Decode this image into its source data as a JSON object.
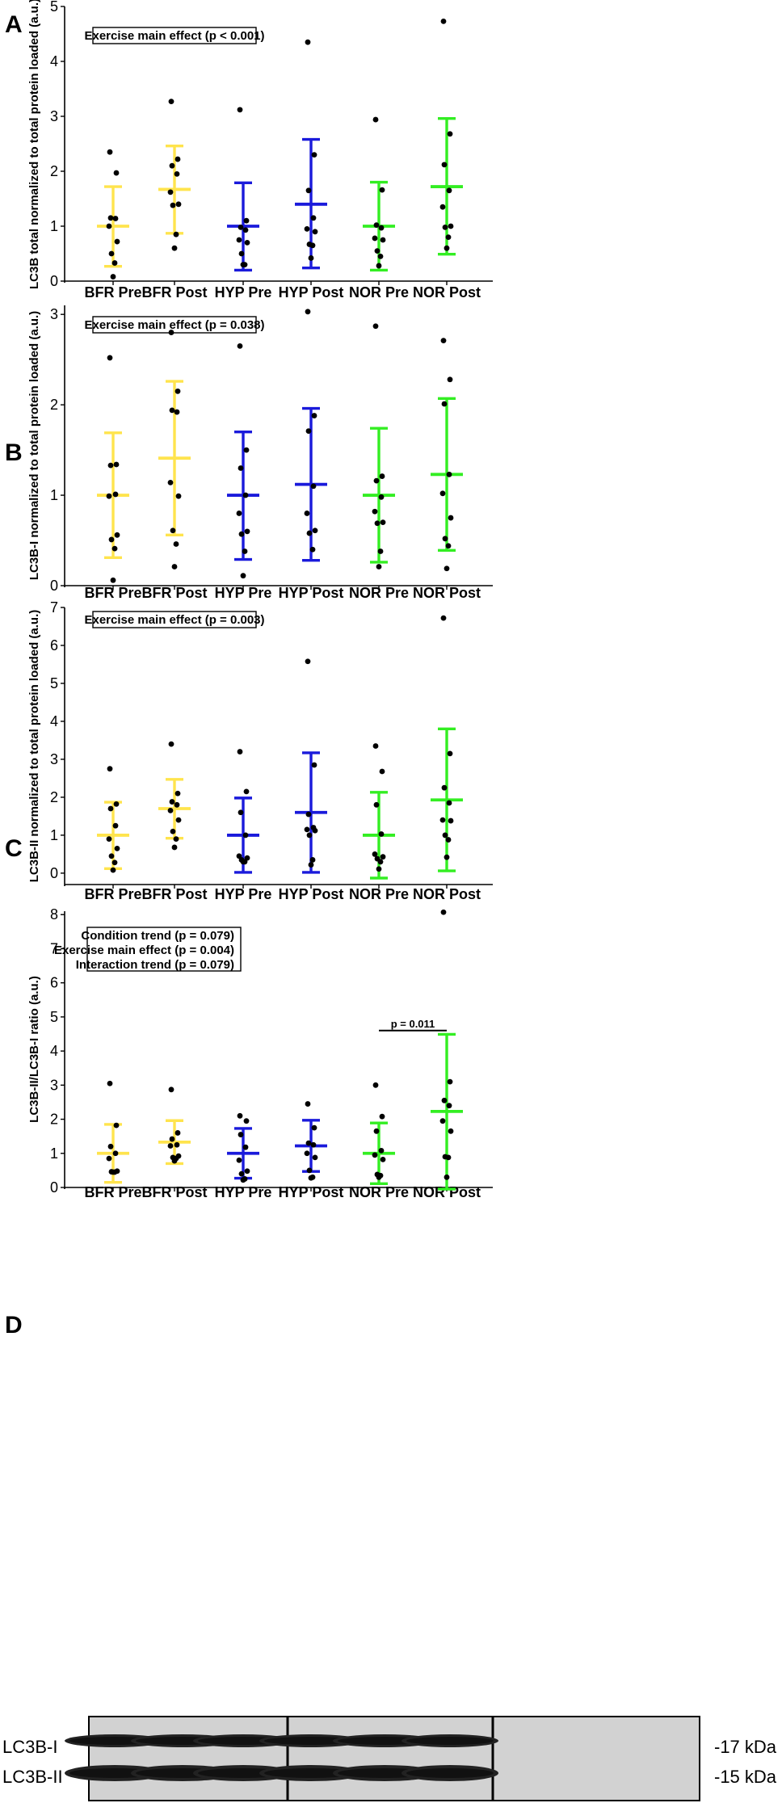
{
  "categories": [
    "BFR Pre",
    "BFR Post",
    "HYP Pre",
    "HYP Post",
    "NOR Pre",
    "NOR Post"
  ],
  "colors": {
    "BFR": "#ffe44d",
    "HYP": "#1a1adb",
    "NOR": "#33ee22",
    "points": "#000000"
  },
  "chart_data": [
    {
      "type": "scatter",
      "panel": "A",
      "ylabel": "LC3B total normalized to total protein loaded (a.u.)",
      "ylim": [
        0,
        5
      ],
      "yticks": [
        0,
        1,
        2,
        3,
        4,
        5
      ],
      "annotations": [
        "Exercise main effect (p < 0.001)"
      ],
      "groups": [
        {
          "name": "BFR Pre",
          "mean": 1.0,
          "upper": 1.72,
          "lower": 0.27,
          "points": [
            2.35,
            1.97,
            1.15,
            1.14,
            1.0,
            0.72,
            0.5,
            0.33,
            0.08
          ]
        },
        {
          "name": "BFR Post",
          "mean": 1.67,
          "upper": 2.46,
          "lower": 0.87,
          "points": [
            3.27,
            2.22,
            2.1,
            1.95,
            1.62,
            1.4,
            1.38,
            0.85,
            0.6
          ]
        },
        {
          "name": "HYP Pre",
          "mean": 1.0,
          "upper": 1.79,
          "lower": 0.2,
          "points": [
            3.12,
            1.1,
            0.98,
            0.93,
            0.75,
            0.7,
            0.5,
            0.3,
            0.3
          ]
        },
        {
          "name": "HYP Post",
          "mean": 1.4,
          "upper": 2.58,
          "lower": 0.24,
          "points": [
            4.35,
            2.3,
            1.65,
            1.15,
            0.95,
            0.9,
            0.67,
            0.65,
            0.42
          ]
        },
        {
          "name": "NOR Pre",
          "mean": 1.0,
          "upper": 1.8,
          "lower": 0.2,
          "points": [
            2.94,
            1.66,
            1.02,
            0.97,
            0.78,
            0.75,
            0.55,
            0.45,
            0.28
          ]
        },
        {
          "name": "NOR Post",
          "mean": 1.72,
          "upper": 2.96,
          "lower": 0.49,
          "points": [
            4.73,
            2.68,
            2.12,
            1.65,
            1.35,
            1.0,
            0.98,
            0.8,
            0.6
          ]
        }
      ]
    },
    {
      "type": "scatter",
      "panel": "B",
      "ylabel": "LC3B-I normalized to total protein loaded (a.u.)",
      "ylim": [
        0,
        3.1
      ],
      "yticks": [
        0,
        1,
        2,
        3
      ],
      "annotations": [
        "Exercise main effect (p = 0.038)"
      ],
      "groups": [
        {
          "name": "BFR Pre",
          "mean": 1.0,
          "upper": 1.69,
          "lower": 0.31,
          "points": [
            2.52,
            1.34,
            1.33,
            1.01,
            0.99,
            0.56,
            0.51,
            0.41,
            0.06
          ]
        },
        {
          "name": "BFR Post",
          "mean": 1.41,
          "upper": 2.26,
          "lower": 0.56,
          "points": [
            2.8,
            2.15,
            1.94,
            1.92,
            1.14,
            0.99,
            0.61,
            0.46,
            0.21
          ]
        },
        {
          "name": "HYP Pre",
          "mean": 1.0,
          "upper": 1.7,
          "lower": 0.29,
          "points": [
            2.65,
            1.5,
            1.3,
            1.0,
            0.8,
            0.6,
            0.57,
            0.38,
            0.11
          ]
        },
        {
          "name": "HYP Post",
          "mean": 1.12,
          "upper": 1.96,
          "lower": 0.28,
          "points": [
            3.03,
            1.88,
            1.71,
            1.1,
            0.8,
            0.61,
            0.58,
            0.4
          ]
        },
        {
          "name": "NOR Pre",
          "mean": 1.0,
          "upper": 1.74,
          "lower": 0.26,
          "points": [
            2.87,
            1.21,
            1.16,
            0.98,
            0.82,
            0.7,
            0.69,
            0.38,
            0.21
          ]
        },
        {
          "name": "NOR Post",
          "mean": 1.23,
          "upper": 2.07,
          "lower": 0.39,
          "points": [
            2.71,
            2.28,
            2.01,
            1.23,
            1.02,
            0.75,
            0.52,
            0.44,
            0.19
          ]
        }
      ]
    },
    {
      "type": "scatter",
      "panel": "C",
      "ylabel": "LC3B-II normalized to total protein loaded (a.u.)",
      "ylim": [
        -0.3,
        7
      ],
      "yticks": [
        0,
        1,
        2,
        3,
        4,
        5,
        6,
        7
      ],
      "annotations": [
        "Exercise main effect (p = 0.003)"
      ],
      "groups": [
        {
          "name": "BFR Pre",
          "mean": 1.0,
          "upper": 1.87,
          "lower": 0.12,
          "points": [
            2.75,
            1.82,
            1.7,
            1.25,
            0.9,
            0.65,
            0.45,
            0.28,
            0.08
          ]
        },
        {
          "name": "BFR Post",
          "mean": 1.7,
          "upper": 2.47,
          "lower": 0.92,
          "points": [
            3.4,
            2.1,
            1.88,
            1.8,
            1.65,
            1.4,
            1.1,
            0.9,
            0.68
          ]
        },
        {
          "name": "HYP Pre",
          "mean": 1.0,
          "upper": 1.98,
          "lower": 0.02,
          "points": [
            3.2,
            2.15,
            1.6,
            1.0,
            0.45,
            0.4,
            0.35,
            0.3,
            0.3
          ]
        },
        {
          "name": "HYP Post",
          "mean": 1.6,
          "upper": 3.17,
          "lower": 0.02,
          "points": [
            5.58,
            2.85,
            1.55,
            1.2,
            1.15,
            1.12,
            1.0,
            0.35,
            0.22
          ]
        },
        {
          "name": "NOR Pre",
          "mean": 1.0,
          "upper": 2.13,
          "lower": -0.13,
          "points": [
            3.35,
            2.68,
            1.8,
            1.03,
            0.5,
            0.43,
            0.38,
            0.3,
            0.11
          ]
        },
        {
          "name": "NOR Post",
          "mean": 1.93,
          "upper": 3.8,
          "lower": 0.06,
          "points": [
            6.72,
            3.15,
            2.25,
            1.85,
            1.4,
            1.38,
            1.0,
            0.88,
            0.42
          ]
        }
      ]
    },
    {
      "type": "scatter",
      "panel": "D",
      "ylabel": "LC3B-II/LC3B-I ratio (a.u.)",
      "ylim": [
        0,
        8.1
      ],
      "yticks": [
        0,
        1,
        2,
        3,
        4,
        5,
        6,
        7,
        8
      ],
      "annotations": [
        "Condition trend (p = 0.079)",
        "Exercise main effect (p = 0.004)",
        "Interaction trend (p = 0.079)"
      ],
      "significance": {
        "label": "p = 0.011",
        "from": "NOR Pre",
        "to": "NOR Post",
        "y": 4.6
      },
      "groups": [
        {
          "name": "BFR Pre",
          "mean": 1.0,
          "upper": 1.85,
          "lower": 0.15,
          "points": [
            3.05,
            1.82,
            1.2,
            1.0,
            0.85,
            0.48,
            0.46,
            0.45,
            0.45
          ]
        },
        {
          "name": "BFR Post",
          "mean": 1.33,
          "upper": 1.96,
          "lower": 0.7,
          "points": [
            2.87,
            1.6,
            1.42,
            1.25,
            1.22,
            0.92,
            0.88,
            0.85,
            0.78
          ]
        },
        {
          "name": "HYP Pre",
          "mean": 1.0,
          "upper": 1.73,
          "lower": 0.27,
          "points": [
            2.1,
            1.95,
            1.55,
            1.18,
            0.8,
            0.48,
            0.4,
            0.25,
            0.22
          ]
        },
        {
          "name": "HYP Post",
          "mean": 1.22,
          "upper": 1.97,
          "lower": 0.47,
          "points": [
            2.45,
            1.75,
            1.3,
            1.25,
            1.0,
            0.88,
            0.5,
            0.3,
            0.28
          ]
        },
        {
          "name": "NOR Pre",
          "mean": 1.0,
          "upper": 1.89,
          "lower": 0.11,
          "points": [
            3.0,
            2.08,
            1.65,
            1.08,
            0.95,
            0.82,
            0.38,
            0.35,
            0.3
          ]
        },
        {
          "name": "NOR Post",
          "mean": 2.23,
          "upper": 4.49,
          "lower": -0.05,
          "points": [
            8.07,
            3.1,
            2.55,
            2.4,
            1.95,
            1.65,
            0.9,
            0.88,
            0.3
          ]
        }
      ]
    }
  ],
  "blot": {
    "band_labels": [
      "LC3B-I",
      "LC3B-II"
    ],
    "kda_labels": [
      "-17 kDa",
      "-15 kDa"
    ]
  }
}
